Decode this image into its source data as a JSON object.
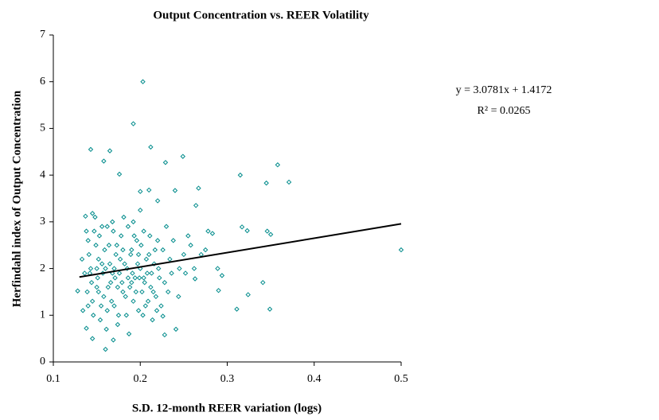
{
  "chart_data": {
    "type": "scatter",
    "title": "Output Concentration vs. REER Volatility",
    "x_label": "S.D. 12-month REER variation (logs)",
    "y_label": "Herfindahl index of Output Concentration",
    "annotations": [
      "y = 3.0781x + 1.4172",
      "R² = 0.0265"
    ],
    "xlim": [
      0.1,
      0.5
    ],
    "ylim": [
      0,
      7
    ],
    "xticks": [
      0.1,
      0.2,
      0.3,
      0.4,
      0.5
    ],
    "yticks": [
      0,
      1,
      2,
      3,
      4,
      5,
      6,
      7
    ],
    "grid": false,
    "series": [
      {
        "kind": "points",
        "color": "#008b8b",
        "x": [
          0.203,
          0.192,
          0.212,
          0.143,
          0.165,
          0.158,
          0.249,
          0.229,
          0.315,
          0.358,
          0.371,
          0.345,
          0.5,
          0.176,
          0.267,
          0.264,
          0.24,
          0.21,
          0.2,
          0.317,
          0.323,
          0.346,
          0.35,
          0.341,
          0.324,
          0.311,
          0.349,
          0.294,
          0.29,
          0.289,
          0.283,
          0.278,
          0.275,
          0.262,
          0.263,
          0.255,
          0.25,
          0.244,
          0.241,
          0.228,
          0.226,
          0.16,
          0.169,
          0.145,
          0.138,
          0.134,
          0.128,
          0.133,
          0.137,
          0.145,
          0.2,
          0.22,
          0.14,
          0.142,
          0.145,
          0.147,
          0.15,
          0.152,
          0.154,
          0.156,
          0.158,
          0.16,
          0.162,
          0.164,
          0.166,
          0.168,
          0.17,
          0.172,
          0.174,
          0.176,
          0.178,
          0.18,
          0.182,
          0.184,
          0.186,
          0.188,
          0.19,
          0.192,
          0.194,
          0.196,
          0.198,
          0.2,
          0.202,
          0.204,
          0.206,
          0.208,
          0.21,
          0.212,
          0.214,
          0.216,
          0.218,
          0.22,
          0.222,
          0.224,
          0.226,
          0.228,
          0.23,
          0.232,
          0.234,
          0.236,
          0.139,
          0.141,
          0.143,
          0.146,
          0.149,
          0.151,
          0.153,
          0.155,
          0.157,
          0.159,
          0.161,
          0.163,
          0.165,
          0.167,
          0.169,
          0.171,
          0.173,
          0.175,
          0.177,
          0.179,
          0.181,
          0.183,
          0.185,
          0.187,
          0.189,
          0.191,
          0.193,
          0.195,
          0.197,
          0.199,
          0.201,
          0.203,
          0.205,
          0.207,
          0.209,
          0.211,
          0.213,
          0.215,
          0.217,
          0.219,
          0.221,
          0.138,
          0.144,
          0.148,
          0.152,
          0.156,
          0.162,
          0.168,
          0.174,
          0.18,
          0.186,
          0.192,
          0.198,
          0.204,
          0.136,
          0.14,
          0.15,
          0.17,
          0.19,
          0.238,
          0.245,
          0.252,
          0.258,
          0.27
        ],
        "values": [
          6.0,
          5.1,
          4.6,
          4.55,
          4.52,
          4.3,
          4.4,
          4.27,
          4.0,
          4.22,
          3.85,
          3.83,
          2.4,
          4.02,
          3.72,
          3.35,
          3.67,
          3.68,
          3.65,
          2.89,
          2.81,
          2.8,
          2.73,
          1.7,
          1.44,
          1.13,
          1.13,
          1.85,
          1.53,
          2.0,
          2.75,
          2.8,
          2.4,
          2.0,
          1.78,
          2.7,
          2.3,
          1.4,
          0.7,
          0.58,
          0.98,
          0.27,
          0.47,
          0.5,
          0.72,
          1.1,
          1.52,
          2.2,
          3.12,
          3.18,
          3.25,
          3.45,
          2.6,
          1.9,
          1.3,
          2.8,
          1.6,
          2.2,
          0.9,
          2.9,
          1.4,
          2.0,
          1.1,
          2.5,
          1.7,
          3.0,
          1.2,
          2.3,
          0.8,
          1.9,
          2.7,
          1.5,
          2.1,
          1.0,
          2.9,
          1.6,
          2.4,
          1.3,
          1.8,
          2.6,
          1.1,
          2.0,
          1.5,
          2.8,
          1.2,
          1.9,
          2.3,
          1.6,
          0.9,
          2.1,
          1.4,
          2.6,
          1.8,
          1.2,
          2.4,
          1.7,
          2.9,
          1.5,
          2.2,
          1.9,
          1.5,
          2.3,
          2.0,
          1.0,
          2.5,
          1.8,
          2.7,
          1.2,
          1.9,
          2.4,
          0.7,
          1.6,
          2.1,
          1.3,
          2.8,
          1.8,
          2.5,
          1.0,
          2.2,
          1.7,
          3.1,
          1.4,
          2.0,
          0.6,
          2.3,
          1.9,
          2.7,
          1.5,
          2.1,
          1.8,
          2.5,
          1.0,
          1.7,
          2.2,
          1.3,
          2.7,
          1.9,
          1.5,
          2.4,
          1.1,
          2.0,
          2.8,
          1.7,
          3.1,
          1.5,
          2.1,
          2.9,
          1.9,
          1.6,
          2.4,
          1.8,
          3.0,
          2.3,
          1.8,
          1.9,
          1.2,
          2.0,
          2.0,
          1.7,
          2.6,
          2.0,
          1.9,
          2.5,
          2.3
        ]
      },
      {
        "kind": "line",
        "color": "#000000",
        "x": [
          0.13,
          0.5
        ],
        "values": [
          1.8173,
          2.9563
        ]
      }
    ]
  }
}
